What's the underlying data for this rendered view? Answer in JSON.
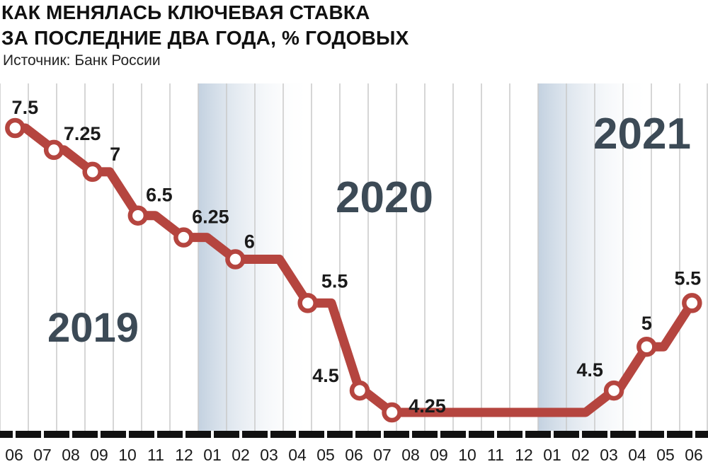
{
  "header": {
    "title_line1": "КАК МЕНЯЛАСЬ КЛЮЧЕВАЯ СТАВКА",
    "title_line2": "ЗА ПОСЛЕДНИЕ ДВА ГОДА, % ГОДОВЫХ",
    "source": "Источник: Банк России"
  },
  "colors": {
    "line": "#b5453f",
    "marker_fill": "#ffffff",
    "grid": "#c9c9c9",
    "year_band": "#c9d6e4",
    "year_text": "#3c4a56",
    "axis": "#111111"
  },
  "chart_data": {
    "type": "line",
    "title": "КАК МЕНЯЛАСЬ КЛЮЧЕВАЯ СТАВКА ЗА ПОСЛЕДНИЕ ДВА ГОДА, % ГОДОВЫХ",
    "xlabel": "",
    "ylabel": "",
    "x_ticks": [
      "06",
      "07",
      "08",
      "09",
      "10",
      "11",
      "12",
      "01",
      "02",
      "03",
      "04",
      "05",
      "06",
      "07",
      "08",
      "09",
      "10",
      "11",
      "12",
      "01",
      "02",
      "03",
      "04",
      "05",
      "06"
    ],
    "years": [
      {
        "label": "2019",
        "months": [
          "06",
          "07",
          "08",
          "09",
          "10",
          "11",
          "12"
        ]
      },
      {
        "label": "2020",
        "months": [
          "01",
          "02",
          "03",
          "04",
          "05",
          "06",
          "07",
          "08",
          "09",
          "10",
          "11",
          "12"
        ]
      },
      {
        "label": "2021",
        "months": [
          "01",
          "02",
          "03",
          "04",
          "05",
          "06"
        ]
      }
    ],
    "series": [
      {
        "points": [
          {
            "x": "2019-06-17",
            "y": 7.5,
            "label": "7.5",
            "labeled": true
          },
          {
            "x": "2019-07-29",
            "y": 7.25,
            "label": "7.25",
            "labeled": true
          },
          {
            "x": "2019-09-09",
            "y": 7,
            "label": "7",
            "labeled": true
          },
          {
            "x": "2019-10-28",
            "y": 6.5,
            "label": "6.5",
            "labeled": true
          },
          {
            "x": "2019-12-16",
            "y": 6.25,
            "label": "6.25",
            "labeled": true
          },
          {
            "x": "2020-02-10",
            "y": 6,
            "label": "6",
            "labeled": true
          },
          {
            "x": "2020-04-27",
            "y": 5.5,
            "label": "5.5",
            "labeled": true
          },
          {
            "x": "2020-06-22",
            "y": 4.5,
            "label": "4.5",
            "labeled": true
          },
          {
            "x": "2020-07-27",
            "y": 4.25,
            "label": "4.25",
            "labeled": true
          },
          {
            "x": "2021-03-22",
            "y": 4.5,
            "label": "4.5",
            "labeled": true
          },
          {
            "x": "2021-04-26",
            "y": 5,
            "label": "5",
            "labeled": true
          },
          {
            "x": "2021-06-14",
            "y": 5.5,
            "label": "5.5",
            "labeled": true
          }
        ]
      }
    ],
    "ylim": [
      4.25,
      7.5
    ],
    "grid": true,
    "legend": "none"
  }
}
